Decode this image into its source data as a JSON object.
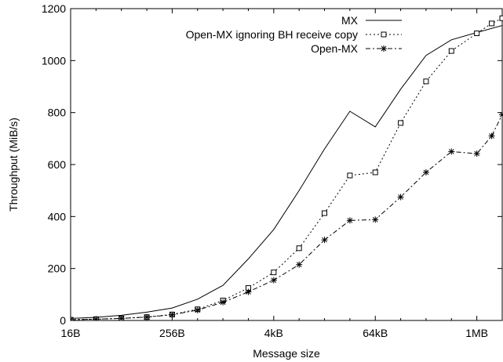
{
  "chart_data": {
    "type": "line",
    "title": "",
    "xlabel": "Message size",
    "ylabel": "Throughput (MiB/s)",
    "x_scale": "log2",
    "x_unit": "bytes",
    "xlim": [
      16,
      2097152
    ],
    "ylim": [
      0,
      1200
    ],
    "x_ticks": [
      {
        "value": 16,
        "label": "16B"
      },
      {
        "value": 256,
        "label": "256B"
      },
      {
        "value": 4096,
        "label": "4kB"
      },
      {
        "value": 65536,
        "label": "64kB"
      },
      {
        "value": 1048576,
        "label": "1MB"
      }
    ],
    "y_ticks": [
      {
        "value": 0,
        "label": "0"
      },
      {
        "value": 200,
        "label": "200"
      },
      {
        "value": 400,
        "label": "400"
      },
      {
        "value": 600,
        "label": "600"
      },
      {
        "value": 800,
        "label": "800"
      },
      {
        "value": 1000,
        "label": "1000"
      },
      {
        "value": 1200,
        "label": "1200"
      }
    ],
    "grid": false,
    "legend_position": "top-right",
    "series": [
      {
        "name": "MX",
        "style": "solid",
        "marker": "none",
        "color": "#000000",
        "points": [
          [
            16,
            8
          ],
          [
            32,
            12
          ],
          [
            64,
            20
          ],
          [
            128,
            32
          ],
          [
            256,
            48
          ],
          [
            512,
            82
          ],
          [
            1024,
            135
          ],
          [
            2048,
            237
          ],
          [
            4096,
            350
          ],
          [
            8192,
            500
          ],
          [
            16384,
            660
          ],
          [
            32768,
            805
          ],
          [
            65536,
            745
          ],
          [
            131072,
            890
          ],
          [
            262144,
            1020
          ],
          [
            524288,
            1080
          ],
          [
            1048576,
            1108
          ],
          [
            2097152,
            1135
          ]
        ]
      },
      {
        "name": "Open-MX ignoring BH receive copy",
        "style": "dotted",
        "marker": "open-square",
        "color": "#000000",
        "points": [
          [
            16,
            3
          ],
          [
            32,
            5
          ],
          [
            64,
            8
          ],
          [
            128,
            13
          ],
          [
            256,
            23
          ],
          [
            512,
            43
          ],
          [
            1024,
            77
          ],
          [
            2048,
            125
          ],
          [
            4096,
            185
          ],
          [
            8192,
            278
          ],
          [
            16384,
            413
          ],
          [
            32768,
            558
          ],
          [
            65536,
            570
          ],
          [
            131072,
            760
          ],
          [
            262144,
            920
          ],
          [
            524288,
            1037
          ],
          [
            1048576,
            1105
          ],
          [
            1572864,
            1143
          ],
          [
            2097152,
            1163
          ]
        ]
      },
      {
        "name": "Open-MX",
        "style": "dash-dot",
        "marker": "asterisk",
        "color": "#000000",
        "points": [
          [
            16,
            3
          ],
          [
            32,
            5
          ],
          [
            64,
            8
          ],
          [
            128,
            13
          ],
          [
            256,
            22
          ],
          [
            512,
            40
          ],
          [
            1024,
            70
          ],
          [
            2048,
            110
          ],
          [
            4096,
            155
          ],
          [
            8192,
            215
          ],
          [
            16384,
            310
          ],
          [
            32768,
            385
          ],
          [
            65536,
            388
          ],
          [
            131072,
            475
          ],
          [
            262144,
            570
          ],
          [
            524288,
            650
          ],
          [
            1048576,
            642
          ],
          [
            1572864,
            710
          ],
          [
            2097152,
            792
          ]
        ]
      }
    ]
  }
}
